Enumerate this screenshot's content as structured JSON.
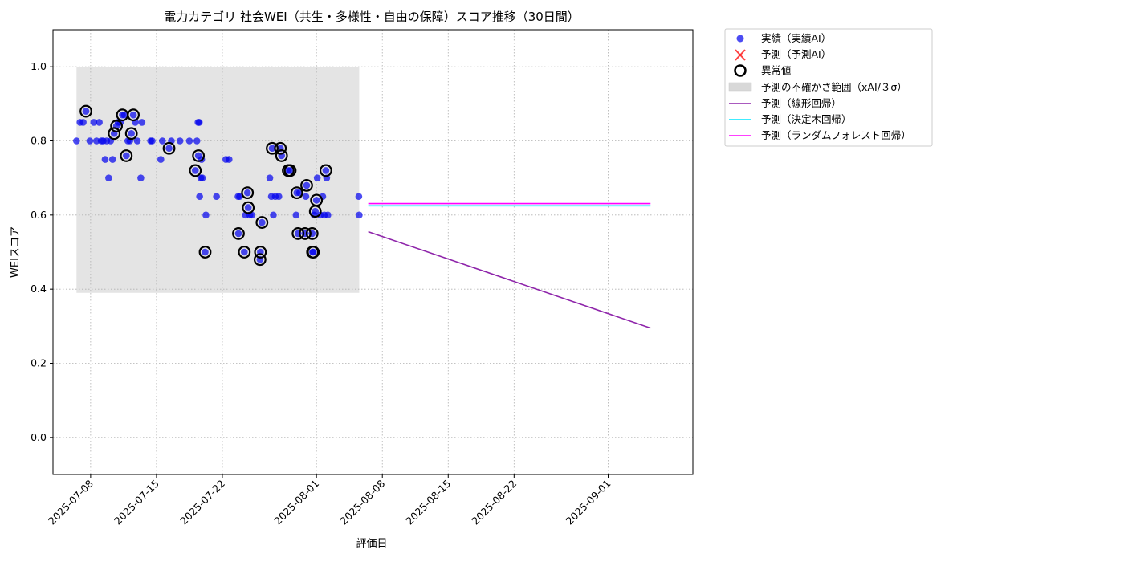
{
  "chart_data": {
    "type": "scatter",
    "title": "電力カテゴリ 社会WEI（共生・多様性・自由の保障）スコア推移（30日間）",
    "xlabel": "評価日",
    "ylabel": "WEIスコア",
    "xlim": [
      "2025-07-04",
      "2025-09-10"
    ],
    "ylim": [
      -0.1,
      1.1
    ],
    "grid": true,
    "legend_position": "outside-top-right",
    "x_ticks": [
      "2025-07-08",
      "2025-07-15",
      "2025-07-22",
      "2025-08-01",
      "2025-08-08",
      "2025-08-15",
      "2025-08-22",
      "2025-09-01"
    ],
    "y_ticks": [
      "0.0",
      "0.2",
      "0.4",
      "0.6",
      "0.8",
      "1.0"
    ],
    "legend": [
      "実績（実績AI）",
      "予測（予測AI）",
      "異常値",
      "予測の不確かさ範囲（xAI/３σ）",
      "予測（線形回帰）",
      "予測（決定木回帰）",
      "予測（ランダムフォレスト回帰）"
    ],
    "series": [
      {
        "name": "実績（実績AI）",
        "kind": "scatter",
        "color": "#0000ee",
        "points": [
          [
            "2025-07-06 12:00",
            0.8
          ],
          [
            "2025-07-06 21:00",
            0.85
          ],
          [
            "2025-07-07 05:00",
            0.85
          ],
          [
            "2025-07-07 12:00",
            0.88
          ],
          [
            "2025-07-07 22:00",
            0.8
          ],
          [
            "2025-07-08 08:00",
            0.85
          ],
          [
            "2025-07-08 15:00",
            0.8
          ],
          [
            "2025-07-08 22:00",
            0.85
          ],
          [
            "2025-07-09 03:00",
            0.8
          ],
          [
            "2025-07-09 08:00",
            0.8
          ],
          [
            "2025-07-09 13:00",
            0.75
          ],
          [
            "2025-07-09 17:00",
            0.8
          ],
          [
            "2025-07-09 22:00",
            0.7
          ],
          [
            "2025-07-10 03:00",
            0.8
          ],
          [
            "2025-07-10 08:00",
            0.75
          ],
          [
            "2025-07-10 12:00",
            0.82
          ],
          [
            "2025-07-10 18:00",
            0.84
          ],
          [
            "2025-07-10 22:00",
            0.85
          ],
          [
            "2025-07-11 04:00",
            0.85
          ],
          [
            "2025-07-11 09:00",
            0.87
          ],
          [
            "2025-07-11 14:00",
            0.87
          ],
          [
            "2025-07-11 19:00",
            0.76
          ],
          [
            "2025-07-11 23:00",
            0.8
          ],
          [
            "2025-07-12 04:00",
            0.8
          ],
          [
            "2025-07-12 08:00",
            0.82
          ],
          [
            "2025-07-12 13:00",
            0.87
          ],
          [
            "2025-07-12 18:00",
            0.85
          ],
          [
            "2025-07-12 23:00",
            0.8
          ],
          [
            "2025-07-13 08:00",
            0.7
          ],
          [
            "2025-07-13 11:00",
            0.85
          ],
          [
            "2025-07-14 09:00",
            0.8
          ],
          [
            "2025-07-14 13:00",
            0.8
          ],
          [
            "2025-07-15 11:00",
            0.75
          ],
          [
            "2025-07-15 15:00",
            0.8
          ],
          [
            "2025-07-16 08:00",
            0.78
          ],
          [
            "2025-07-16 14:00",
            0.8
          ],
          [
            "2025-07-17 12:00",
            0.8
          ],
          [
            "2025-07-18 12:00",
            0.8
          ],
          [
            "2025-07-19 03:00",
            0.72
          ],
          [
            "2025-07-19 07:00",
            0.8
          ],
          [
            "2025-07-19 10:00",
            0.85
          ],
          [
            "2025-07-19 13:00",
            0.85
          ],
          [
            "2025-07-19 11:00",
            0.76
          ],
          [
            "2025-07-19 14:00",
            0.65
          ],
          [
            "2025-07-19 17:00",
            0.7
          ],
          [
            "2025-07-19 19:00",
            0.75
          ],
          [
            "2025-07-19 21:00",
            0.7
          ],
          [
            "2025-07-20 06:00",
            0.6
          ],
          [
            "2025-07-20 04:00",
            0.5
          ],
          [
            "2025-07-21 09:00",
            0.65
          ],
          [
            "2025-07-22 09:00",
            0.75
          ],
          [
            "2025-07-22 17:00",
            0.75
          ],
          [
            "2025-07-23 16:00",
            0.65
          ],
          [
            "2025-07-23 20:00",
            0.65
          ],
          [
            "2025-07-23 17:00",
            0.55
          ],
          [
            "2025-07-24 08:00",
            0.5
          ],
          [
            "2025-07-24 11:00",
            0.6
          ],
          [
            "2025-07-24 16:00",
            0.66
          ],
          [
            "2025-07-24 18:00",
            0.62
          ],
          [
            "2025-07-24 22:00",
            0.6
          ],
          [
            "2025-07-25 03:00",
            0.6
          ],
          [
            "2025-07-26 00:00",
            0.48
          ],
          [
            "2025-07-26 01:00",
            0.5
          ],
          [
            "2025-07-26 05:00",
            0.58
          ],
          [
            "2025-07-27 01:00",
            0.7
          ],
          [
            "2025-07-27 05:00",
            0.65
          ],
          [
            "2025-07-27 07:00",
            0.78
          ],
          [
            "2025-07-27 10:00",
            0.6
          ],
          [
            "2025-07-27 15:00",
            0.65
          ],
          [
            "2025-07-28 00:00",
            0.65
          ],
          [
            "2025-07-28 04:00",
            0.78
          ],
          [
            "2025-07-28 07:00",
            0.76
          ],
          [
            "2025-07-29 00:00",
            0.72
          ],
          [
            "2025-07-29 05:00",
            0.72
          ],
          [
            "2025-07-29 20:00",
            0.6
          ],
          [
            "2025-07-29 22:00",
            0.66
          ],
          [
            "2025-07-30 01:00",
            0.55
          ],
          [
            "2025-07-30 05:00",
            0.66
          ],
          [
            "2025-07-30 19:00",
            0.55
          ],
          [
            "2025-07-30 23:00",
            0.68
          ],
          [
            "2025-07-30 21:00",
            0.65
          ],
          [
            "2025-07-31 13:00",
            0.55
          ],
          [
            "2025-07-31 14:00",
            0.5
          ],
          [
            "2025-07-31 16:00",
            0.5
          ],
          [
            "2025-07-31 18:00",
            0.6
          ],
          [
            "2025-07-31 21:00",
            0.61
          ],
          [
            "2025-08-01 00:00",
            0.64
          ],
          [
            "2025-08-01 02:00",
            0.7
          ],
          [
            "2025-08-01 10:00",
            0.6
          ],
          [
            "2025-08-01 16:00",
            0.65
          ],
          [
            "2025-08-01 20:00",
            0.6
          ],
          [
            "2025-08-02 00:00",
            0.72
          ],
          [
            "2025-08-02 02:00",
            0.7
          ],
          [
            "2025-08-02 05:00",
            0.6
          ],
          [
            "2025-08-05 12:00",
            0.65
          ],
          [
            "2025-08-05 13:00",
            0.6
          ]
        ]
      },
      {
        "name": "異常値",
        "kind": "outlier-rings",
        "color": "#000000",
        "points": [
          [
            "2025-07-07 12:00",
            0.88
          ],
          [
            "2025-07-10 12:00",
            0.82
          ],
          [
            "2025-07-10 18:00",
            0.84
          ],
          [
            "2025-07-11 09:00",
            0.87
          ],
          [
            "2025-07-11 19:00",
            0.76
          ],
          [
            "2025-07-12 08:00",
            0.82
          ],
          [
            "2025-07-12 13:00",
            0.87
          ],
          [
            "2025-07-16 08:00",
            0.78
          ],
          [
            "2025-07-19 03:00",
            0.72
          ],
          [
            "2025-07-19 11:00",
            0.76
          ],
          [
            "2025-07-20 04:00",
            0.5
          ],
          [
            "2025-07-23 17:00",
            0.55
          ],
          [
            "2025-07-24 08:00",
            0.5
          ],
          [
            "2025-07-24 16:00",
            0.66
          ],
          [
            "2025-07-24 18:00",
            0.62
          ],
          [
            "2025-07-26 00:00",
            0.48
          ],
          [
            "2025-07-26 01:00",
            0.5
          ],
          [
            "2025-07-26 05:00",
            0.58
          ],
          [
            "2025-07-27 07:00",
            0.78
          ],
          [
            "2025-07-28 04:00",
            0.78
          ],
          [
            "2025-07-28 07:00",
            0.76
          ],
          [
            "2025-07-29 00:00",
            0.72
          ],
          [
            "2025-07-29 05:00",
            0.72
          ],
          [
            "2025-07-29 22:00",
            0.66
          ],
          [
            "2025-07-30 01:00",
            0.55
          ],
          [
            "2025-07-30 19:00",
            0.55
          ],
          [
            "2025-07-30 23:00",
            0.68
          ],
          [
            "2025-07-31 13:00",
            0.55
          ],
          [
            "2025-07-31 14:00",
            0.5
          ],
          [
            "2025-07-31 16:00",
            0.5
          ],
          [
            "2025-07-31 21:00",
            0.61
          ],
          [
            "2025-08-01 00:00",
            0.64
          ],
          [
            "2025-08-02 00:00",
            0.72
          ]
        ]
      },
      {
        "name": "予測の不確かさ範囲（xAI/３σ）",
        "kind": "band",
        "color": "#d8d8d8",
        "x_range": [
          "2025-07-06 12:00",
          "2025-08-05 13:00"
        ],
        "y_range": [
          0.39,
          1.0
        ]
      },
      {
        "name": "予測（線形回帰）",
        "kind": "line",
        "color": "#8e24aa",
        "points": [
          [
            "2025-08-06 12:00",
            0.555
          ],
          [
            "2025-09-05 12:00",
            0.295
          ]
        ]
      },
      {
        "name": "予測（決定木回帰）",
        "kind": "line",
        "color": "#00e5ff",
        "points": [
          [
            "2025-08-06 12:00",
            0.625
          ],
          [
            "2025-09-05 12:00",
            0.625
          ]
        ]
      },
      {
        "name": "予測（ランダムフォレスト回帰）",
        "kind": "line",
        "color": "#ff00ff",
        "points": [
          [
            "2025-08-06 12:00",
            0.631
          ],
          [
            "2025-09-05 12:00",
            0.631
          ]
        ]
      }
    ]
  },
  "legend_markers": {
    "actual_color": "#0000ee",
    "forecast_color": "#ff0000",
    "anomaly_color": "#000000",
    "band_color": "#d8d8d8"
  }
}
